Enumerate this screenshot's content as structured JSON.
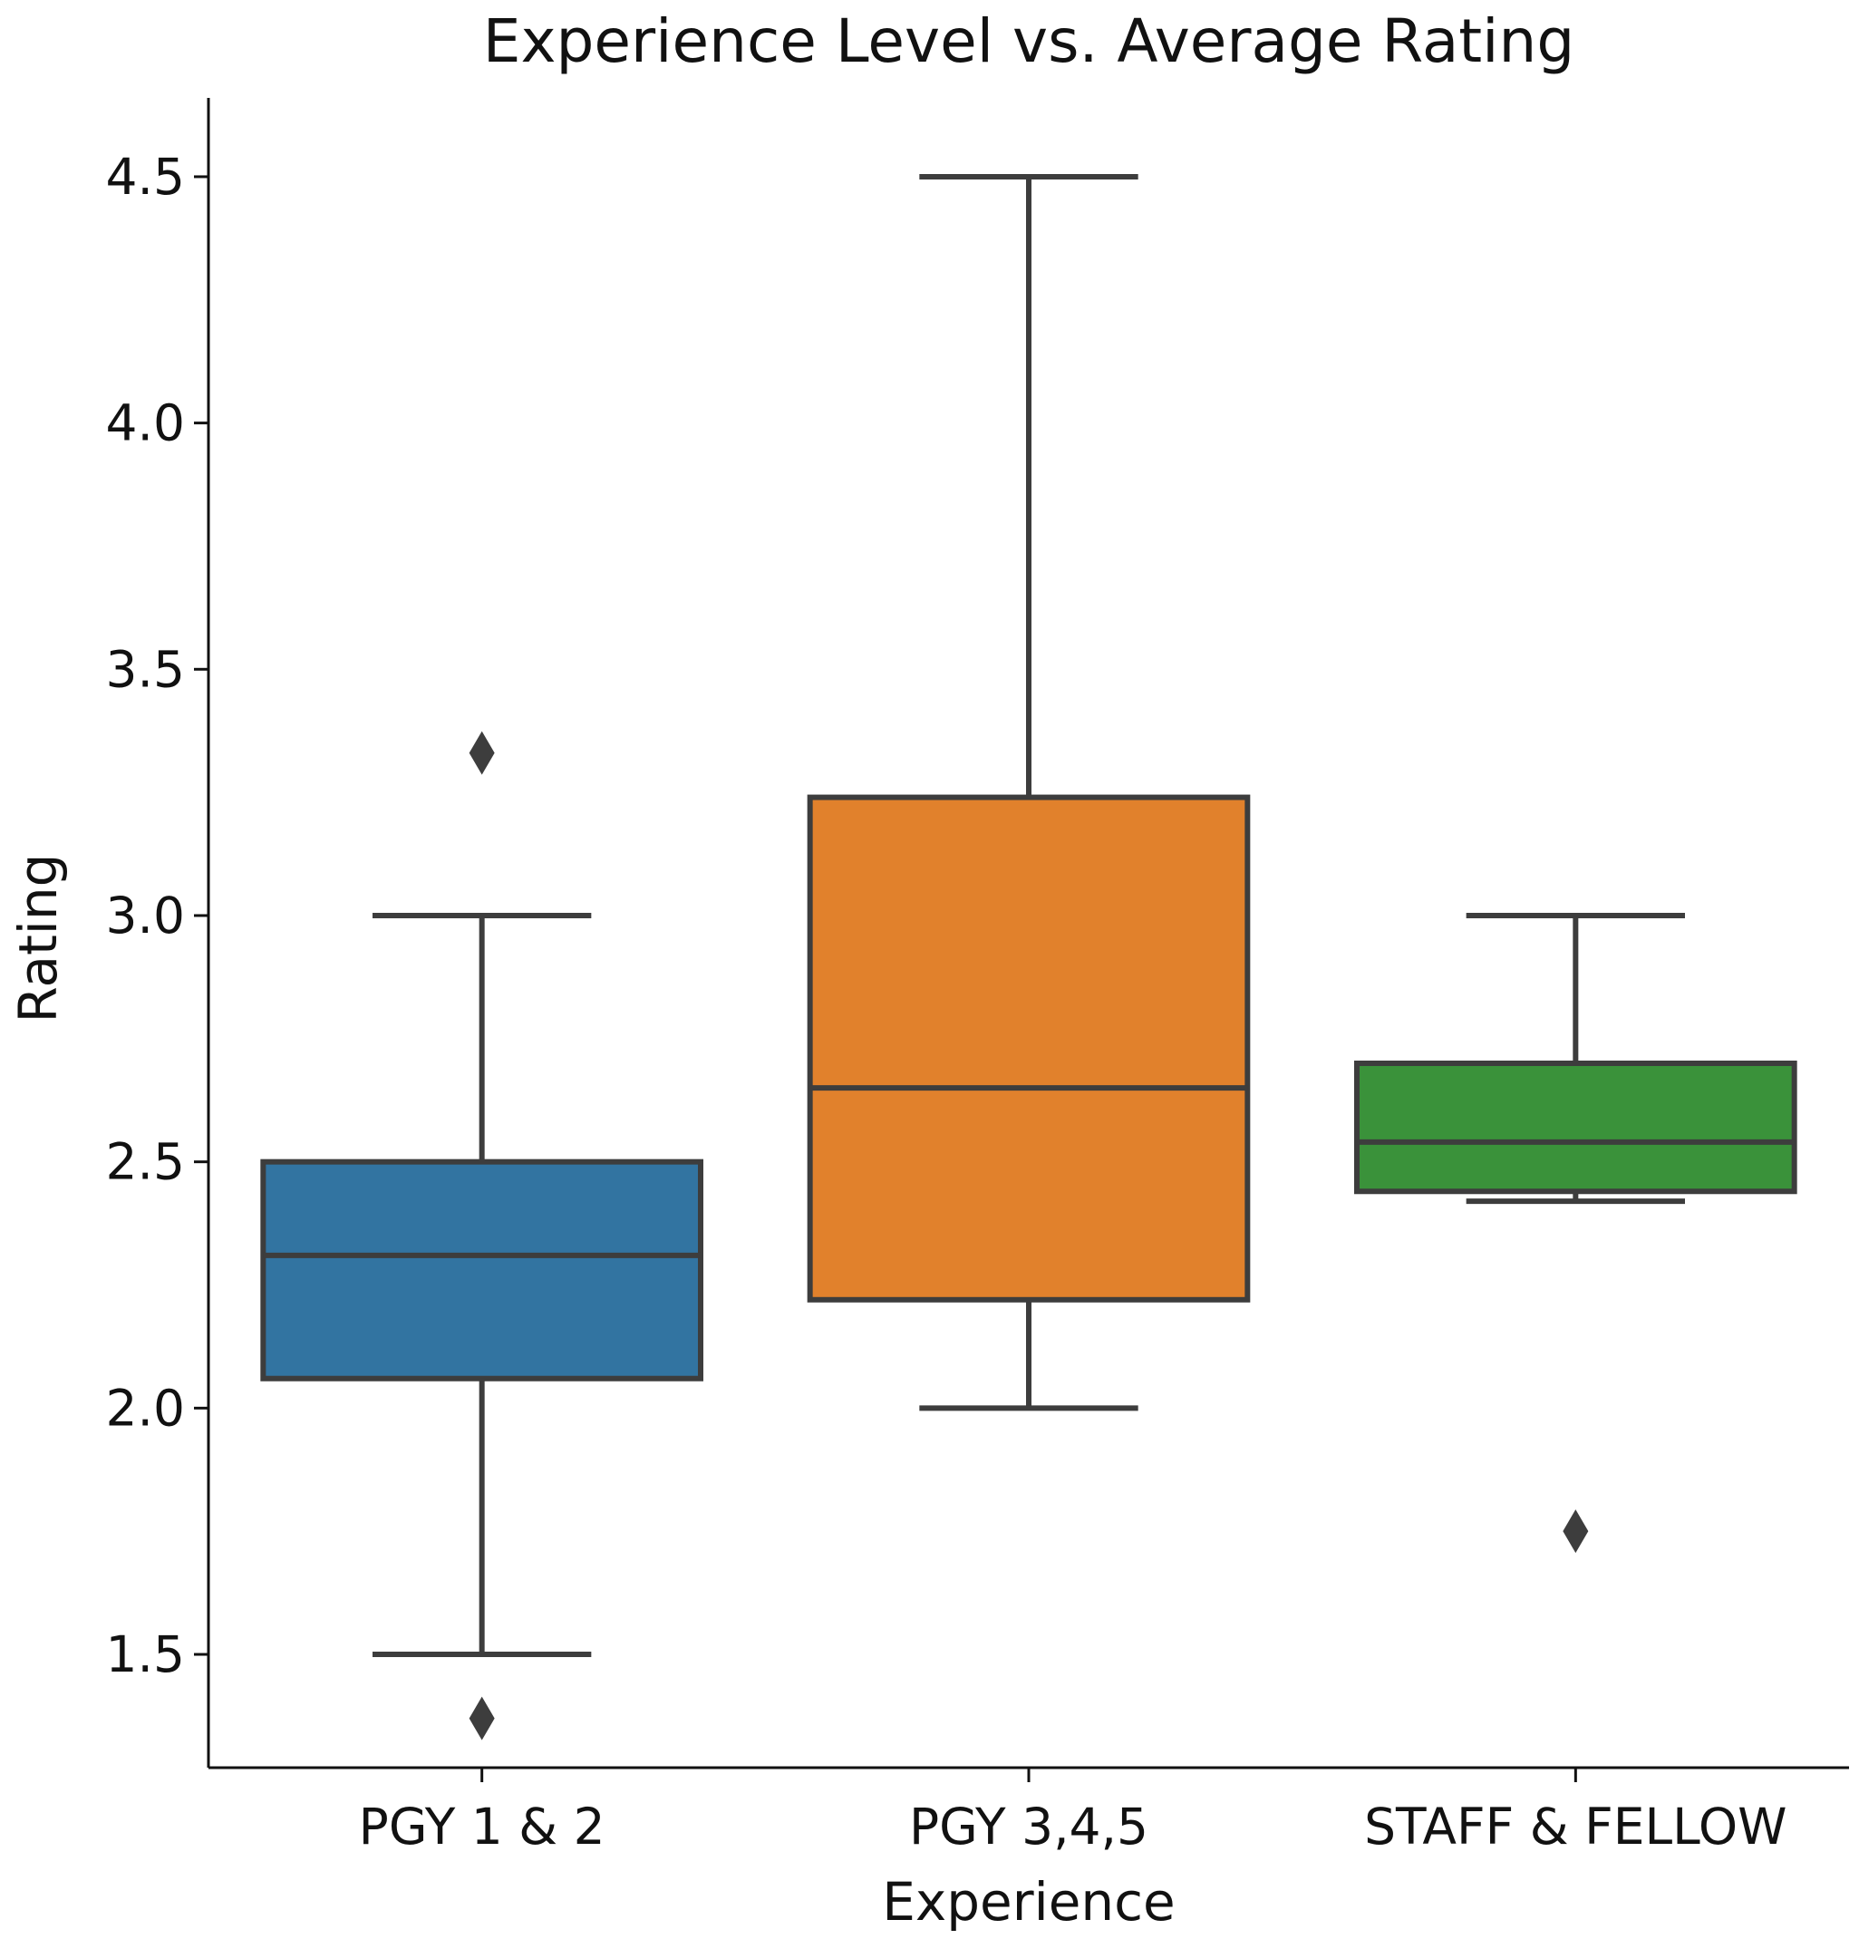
{
  "chart_data": {
    "type": "box",
    "title": "Experience Level vs. Average Rating",
    "xlabel": "Experience",
    "ylabel": "Rating",
    "ylim": [
      1.27,
      4.66
    ],
    "yticks": [
      "1.5",
      "2.0",
      "2.5",
      "3.0",
      "3.5",
      "4.0",
      "4.5"
    ],
    "categories": [
      "PGY 1 & 2",
      "PGY 3,4,5",
      "STAFF & FELLOW"
    ],
    "grid": false,
    "legend": "none",
    "boxes": [
      {
        "category": "PGY 1 & 2",
        "color": "#3274a1",
        "whisker_low": 1.5,
        "q1": 2.06,
        "median": 2.31,
        "q3": 2.5,
        "whisker_high": 3.0,
        "outliers": [
          3.33,
          1.37
        ]
      },
      {
        "category": "PGY 3,4,5",
        "color": "#e1812c",
        "whisker_low": 2.0,
        "q1": 2.22,
        "median": 2.65,
        "q3": 3.24,
        "whisker_high": 4.5,
        "outliers": []
      },
      {
        "category": "STAFF & FELLOW",
        "color": "#3a923a",
        "whisker_low": 2.42,
        "q1": 2.44,
        "median": 2.54,
        "q3": 2.7,
        "whisker_high": 3.0,
        "outliers": [
          1.75
        ]
      }
    ],
    "line_color": "#3d3d3d"
  }
}
